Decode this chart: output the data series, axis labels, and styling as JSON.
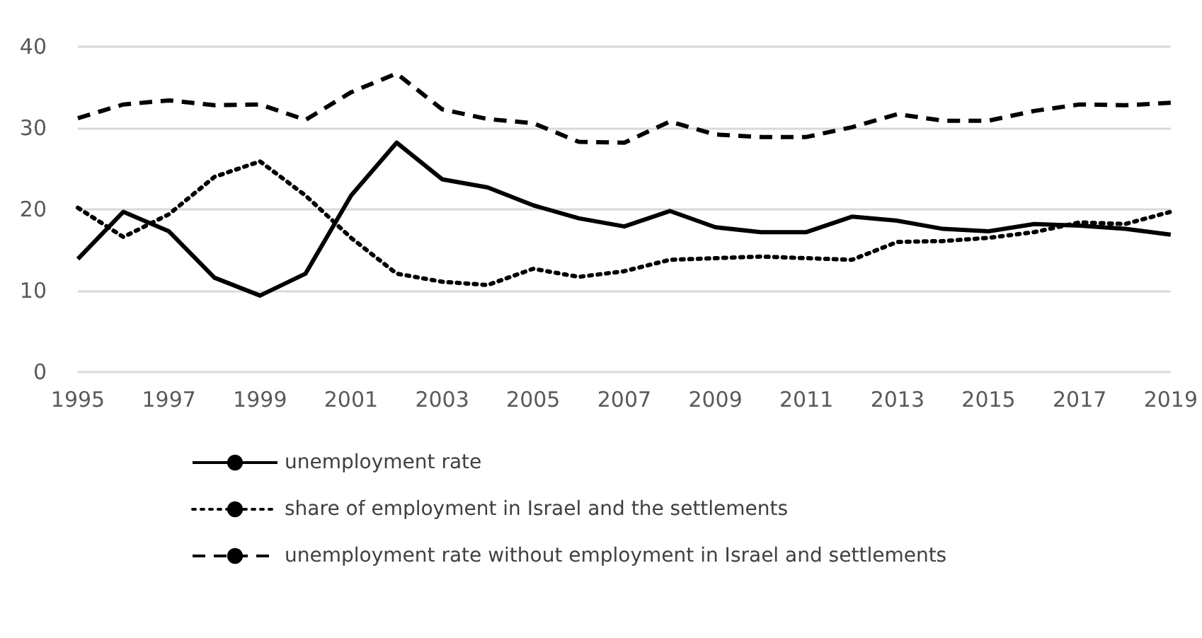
{
  "chart_data": {
    "type": "line",
    "categories": [
      "1995",
      null,
      "1997",
      null,
      "1999",
      null,
      "2001",
      null,
      "2003",
      null,
      "2005",
      null,
      "2007",
      null,
      "2009",
      null,
      "2011",
      null,
      "2013",
      null,
      "2015",
      null,
      "2017",
      null,
      "2019"
    ],
    "series": [
      {
        "name": "unemployment rate",
        "color": "#000000",
        "line_style": "solid",
        "values": [
          13.9,
          19.7,
          17.3,
          11.6,
          9.4,
          12.1,
          21.7,
          28.2,
          23.7,
          22.7,
          20.5,
          18.9,
          17.9,
          19.8,
          17.8,
          17.2,
          17.2,
          19.1,
          18.6,
          17.6,
          17.3,
          18.2,
          18.0,
          17.6,
          16.9
        ]
      },
      {
        "name": "share of employment in Israel and the settlements",
        "color": "#000000",
        "line_style": "dotted",
        "values": [
          20.2,
          16.6,
          19.4,
          24.0,
          25.9,
          21.7,
          16.5,
          12.1,
          11.1,
          10.7,
          12.7,
          11.7,
          12.4,
          13.8,
          14.0,
          14.2,
          14.0,
          13.8,
          16.0,
          16.1,
          16.5,
          17.2,
          18.4,
          18.2,
          19.7
        ]
      },
      {
        "name": "unemployment rate without employment in Israel and settlements",
        "color": "#000000",
        "line_style": "dashed",
        "values": [
          31.2,
          32.9,
          33.4,
          32.8,
          32.9,
          31.0,
          34.4,
          36.7,
          32.3,
          31.1,
          30.6,
          28.3,
          28.2,
          30.8,
          29.2,
          28.9,
          28.9,
          30.1,
          31.7,
          30.9,
          30.9,
          32.1,
          32.9,
          32.8,
          33.1
        ]
      }
    ],
    "ylim": [
      0,
      40
    ],
    "yticks": [
      0,
      10,
      20,
      30,
      40
    ],
    "grid": "y",
    "legend": "bottom",
    "marker": "none"
  }
}
